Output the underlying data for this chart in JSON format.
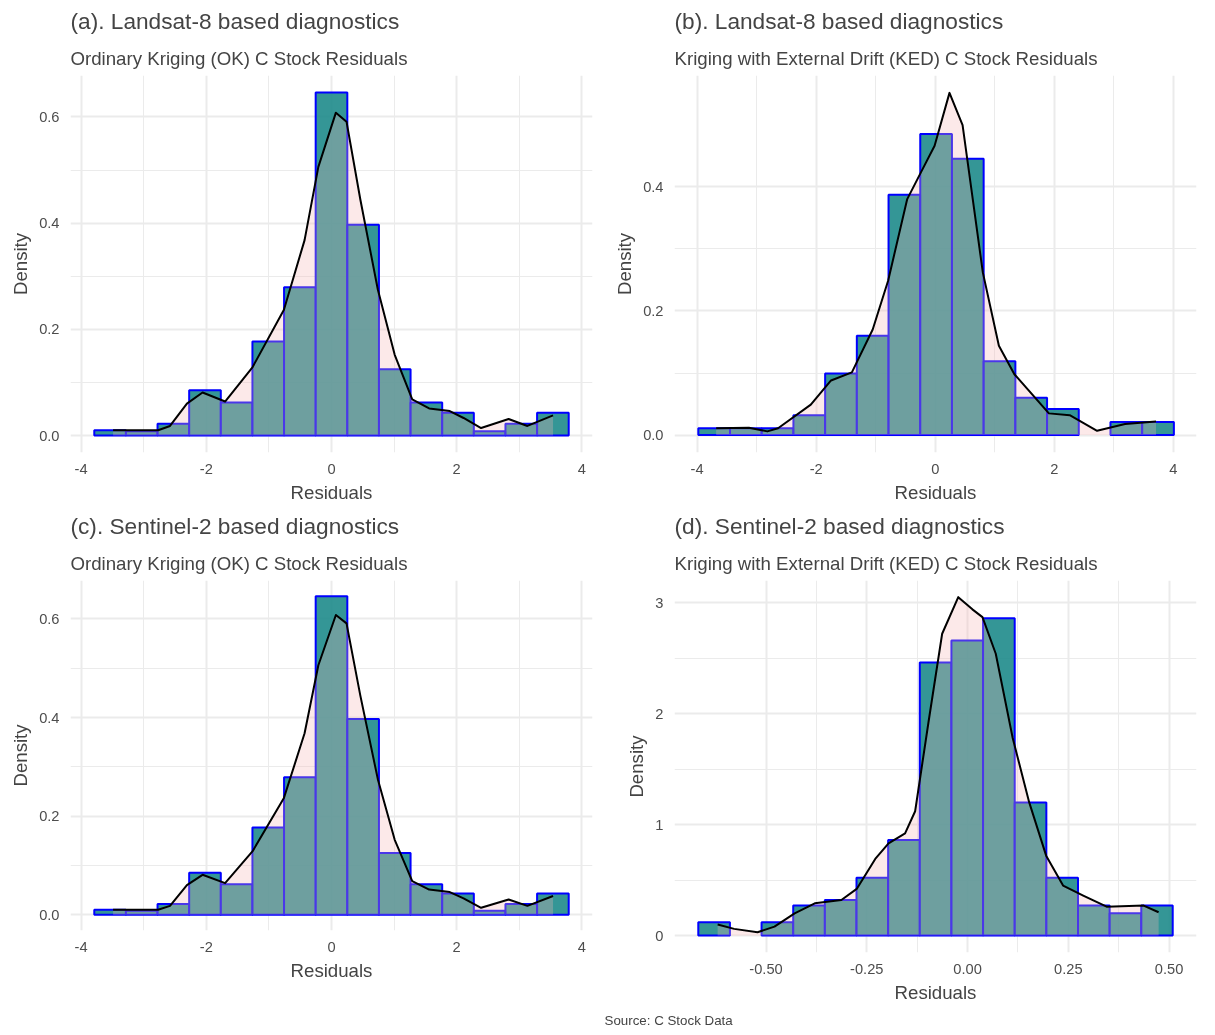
{
  "chart_data": [
    {
      "type": "histogram",
      "title": "(a). Landsat-8 based diagnostics",
      "subtitle": "Ordinary Kriging (OK) C Stock Residuals",
      "xlabel": "Residuals",
      "ylabel": "Density",
      "grid": true,
      "xlim": [
        -4.17,
        4.17
      ],
      "ylim": [
        -0.032,
        0.678
      ],
      "xticks": [
        -4,
        -2,
        0,
        2,
        4
      ],
      "yticks": [
        {
          "value": 0,
          "label": "0.0"
        },
        0.2,
        0.4,
        0.6
      ],
      "series": [
        {
          "color": "#1e8b8b",
          "bins": [
            -3.79,
            -3.2847,
            -2.7793,
            -2.274,
            -1.7687,
            -1.2633,
            -0.758,
            -0.2527,
            0.2527,
            0.758,
            1.2633,
            1.7687,
            2.274,
            2.7793,
            3.2847,
            3.79
          ],
          "values": [
            0.01,
            0.008,
            0.022,
            0.085,
            0.062,
            0.177,
            0.279,
            0.646,
            0.397,
            0.125,
            0.062,
            0.043,
            0.008,
            0.022,
            0.043
          ]
        },
        {
          "type": "area",
          "color": "#000000",
          "x": [
            -3.49,
            -2.77,
            -2.58,
            -2.31,
            -2.06,
            -1.7,
            -1.26,
            -0.76,
            -0.43,
            -0.21,
            0.07,
            0.24,
            0.46,
            0.74,
            1.01,
            1.29,
            1.56,
            1.89,
            2.11,
            2.39,
            2.83,
            3.13,
            3.54
          ],
          "values": [
            0.01,
            0.01,
            0.018,
            0.06,
            0.081,
            0.064,
            0.129,
            0.237,
            0.368,
            0.506,
            0.608,
            0.591,
            0.445,
            0.275,
            0.152,
            0.068,
            0.051,
            0.046,
            0.033,
            0.014,
            0.031,
            0.018,
            0.038
          ]
        }
      ]
    },
    {
      "type": "histogram",
      "title": "(b). Landsat-8 based diagnostics",
      "subtitle": "Kriging with External Drift (KED) C Stock Residuals",
      "xlabel": "Residuals",
      "ylabel": "Density",
      "grid": true,
      "xlim": [
        -4.38,
        4.39
      ],
      "ylim": [
        -0.028,
        0.579
      ],
      "xticks": [
        -4,
        -2,
        0,
        2,
        4
      ],
      "yticks": [
        {
          "value": 0,
          "label": "0.0"
        },
        0.2,
        0.4
      ],
      "series": [
        {
          "color": "#1e8b8b",
          "bins": [
            -3.98,
            -3.4473,
            -2.9147,
            -2.382,
            -1.8493,
            -1.3167,
            -0.784,
            -0.2513,
            0.2813,
            0.814,
            1.3467,
            1.8793,
            2.412,
            2.9447,
            3.4773,
            4.01
          ],
          "values": [
            0.011,
            0.011,
            0.011,
            0.032,
            0.099,
            0.16,
            0.387,
            0.485,
            0.445,
            0.119,
            0.06,
            0.042,
            0,
            0.021,
            0.021
          ]
        },
        {
          "type": "area",
          "color": "#000000",
          "x": [
            -3.68,
            -3.13,
            -2.82,
            -2.64,
            -2.09,
            -1.75,
            -1.4,
            -1.05,
            -0.79,
            -0.47,
            -0.24,
            -0.01,
            0.24,
            0.46,
            0.8,
            1.07,
            1.33,
            1.91,
            2.26,
            2.72,
            3.19,
            3.71
          ],
          "values": [
            0.011,
            0.012,
            0.006,
            0.011,
            0.049,
            0.088,
            0.101,
            0.17,
            0.249,
            0.38,
            0.423,
            0.466,
            0.551,
            0.499,
            0.262,
            0.144,
            0.098,
            0.035,
            0.032,
            0.007,
            0.018,
            0.022
          ]
        }
      ]
    },
    {
      "type": "histogram",
      "title": "(c). Sentinel-2 based diagnostics",
      "subtitle": "Ordinary Kriging (OK) C Stock Residuals",
      "xlabel": "Residuals",
      "ylabel": "Density",
      "grid": true,
      "xlim": [
        -4.17,
        4.17
      ],
      "ylim": [
        -0.032,
        0.678
      ],
      "xticks": [
        -4,
        -2,
        0,
        2,
        4
      ],
      "yticks": [
        {
          "value": 0,
          "label": "0.0"
        },
        0.2,
        0.4,
        0.6
      ],
      "series": [
        {
          "color": "#1e8b8b",
          "bins": [
            -3.79,
            -3.2847,
            -2.7793,
            -2.274,
            -1.7687,
            -1.2633,
            -0.758,
            -0.2527,
            0.2527,
            0.758,
            1.2633,
            1.7687,
            2.274,
            2.7793,
            3.2847,
            3.79
          ],
          "values": [
            0.01,
            0.008,
            0.022,
            0.085,
            0.062,
            0.177,
            0.279,
            0.646,
            0.397,
            0.125,
            0.062,
            0.043,
            0.008,
            0.022,
            0.043
          ]
        },
        {
          "type": "area",
          "color": "#000000",
          "x": [
            -3.49,
            -2.77,
            -2.58,
            -2.31,
            -2.06,
            -1.7,
            -1.26,
            -0.76,
            -0.43,
            -0.21,
            0.07,
            0.24,
            0.46,
            0.74,
            1.01,
            1.29,
            1.56,
            1.89,
            2.11,
            2.39,
            2.83,
            3.13,
            3.54
          ],
          "values": [
            0.01,
            0.01,
            0.018,
            0.06,
            0.081,
            0.064,
            0.129,
            0.237,
            0.368,
            0.506,
            0.608,
            0.591,
            0.445,
            0.275,
            0.152,
            0.068,
            0.051,
            0.046,
            0.033,
            0.014,
            0.031,
            0.018,
            0.038
          ]
        }
      ]
    },
    {
      "type": "histogram",
      "title": "(d). Sentinel-2 based diagnostics",
      "subtitle": "Kriging with External Drift (KED) C Stock Residuals",
      "xlabel": "Residuals",
      "ylabel": "Density",
      "grid": true,
      "xlim": [
        -0.727,
        0.568
      ],
      "ylim": [
        -0.153,
        3.2
      ],
      "xticks": [
        {
          "value": -0.5,
          "label": "-0.50"
        },
        {
          "value": -0.25,
          "label": "-0.25"
        },
        {
          "value": 0,
          "label": "0.00"
        },
        {
          "value": 0.25,
          "label": "0.25"
        },
        {
          "value": 0.5,
          "label": "0.50"
        }
      ],
      "yticks": [
        0,
        1,
        2,
        3
      ],
      "annotations": [
        "Source: C Stock Data"
      ],
      "series": [
        {
          "color": "#1e8b8b",
          "bins": [
            -0.668,
            -0.5895,
            -0.511,
            -0.4325,
            -0.354,
            -0.2755,
            -0.197,
            -0.1185,
            -0.04,
            0.0385,
            0.117,
            0.1955,
            0.274,
            0.3525,
            0.431,
            0.509
          ],
          "values": [
            0.12,
            0,
            0.12,
            0.27,
            0.32,
            0.52,
            0.86,
            2.46,
            2.66,
            2.86,
            1.2,
            0.52,
            0.27,
            0.2,
            0.27
          ]
        },
        {
          "type": "area",
          "color": "#000000",
          "x": [
            -0.62,
            -0.579,
            -0.521,
            -0.479,
            -0.429,
            -0.379,
            -0.313,
            -0.275,
            -0.229,
            -0.196,
            -0.155,
            -0.13,
            -0.097,
            -0.063,
            -0.023,
            0.012,
            0.037,
            0.07,
            0.112,
            0.153,
            0.195,
            0.237,
            0.287,
            0.345,
            0.437,
            0.474
          ],
          "values": [
            0.1,
            0.06,
            0.03,
            0.08,
            0.2,
            0.29,
            0.32,
            0.42,
            0.69,
            0.83,
            0.92,
            1.12,
            1.92,
            2.72,
            3.05,
            2.94,
            2.87,
            2.54,
            1.78,
            1.2,
            0.72,
            0.45,
            0.36,
            0.26,
            0.27,
            0.21
          ]
        }
      ]
    }
  ]
}
